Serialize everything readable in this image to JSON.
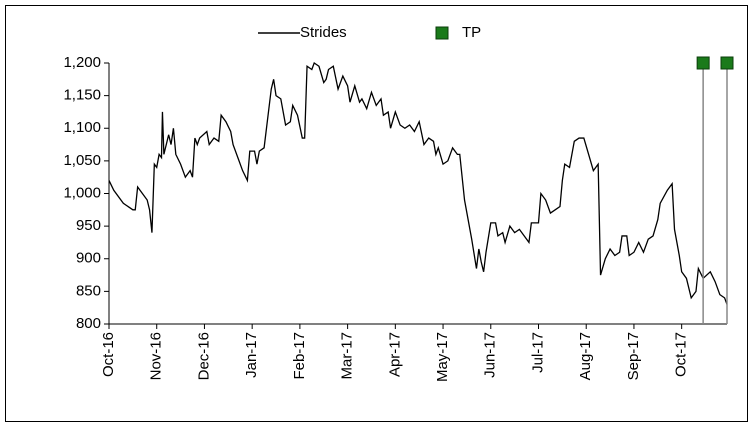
{
  "chart_data": {
    "type": "line",
    "x": [
      0,
      0.1,
      0.3,
      0.5,
      0.55,
      0.6,
      0.7,
      0.8,
      0.85,
      0.9,
      0.95,
      1.0,
      1.05,
      1.1,
      1.12,
      1.15,
      1.25,
      1.3,
      1.35,
      1.4,
      1.5,
      1.6,
      1.7,
      1.75,
      1.8,
      1.85,
      1.9,
      2.05,
      2.1,
      2.2,
      2.3,
      2.35,
      2.45,
      2.55,
      2.6,
      2.7,
      2.8,
      2.9,
      2.95,
      3.05,
      3.1,
      3.15,
      3.25,
      3.3,
      3.4,
      3.45,
      3.5,
      3.6,
      3.7,
      3.8,
      3.85,
      3.95,
      4.05,
      4.1,
      4.15,
      4.25,
      4.3,
      4.4,
      4.5,
      4.55,
      4.6,
      4.7,
      4.8,
      4.9,
      5.0,
      5.05,
      5.15,
      5.25,
      5.3,
      5.4,
      5.5,
      5.6,
      5.7,
      5.75,
      5.85,
      5.9,
      6.0,
      6.1,
      6.2,
      6.3,
      6.4,
      6.5,
      6.6,
      6.7,
      6.8,
      6.85,
      6.9,
      7.0,
      7.1,
      7.2,
      7.3,
      7.35,
      7.45,
      7.6,
      7.7,
      7.75,
      7.8,
      7.85,
      7.9,
      8.0,
      8.1,
      8.15,
      8.25,
      8.3,
      8.4,
      8.5,
      8.6,
      8.7,
      8.8,
      8.85,
      9.0,
      9.05,
      9.15,
      9.25,
      9.35,
      9.45,
      9.5,
      9.55,
      9.65,
      9.75,
      9.85,
      9.95,
      10.05,
      10.15,
      10.25,
      10.3,
      10.4,
      10.5,
      10.6,
      10.7,
      10.75,
      10.85,
      10.9,
      11.0,
      11.1,
      11.2,
      11.3,
      11.4,
      11.5,
      11.55,
      11.7,
      11.8,
      11.85,
      11.95,
      12.0,
      12.1,
      12.2,
      12.3,
      12.35,
      12.45,
      12.6,
      12.7,
      12.8,
      12.9,
      12.95
    ],
    "series": [
      {
        "name": "Strides",
        "color": "#000000",
        "values": [
          1020,
          1005,
          985,
          975,
          975,
          1010,
          1000,
          990,
          975,
          940,
          1045,
          1040,
          1060,
          1055,
          1125,
          1060,
          1090,
          1075,
          1100,
          1060,
          1045,
          1025,
          1035,
          1025,
          1085,
          1075,
          1085,
          1095,
          1075,
          1085,
          1080,
          1120,
          1110,
          1095,
          1075,
          1055,
          1035,
          1020,
          1065,
          1065,
          1045,
          1065,
          1070,
          1100,
          1160,
          1175,
          1150,
          1145,
          1105,
          1110,
          1135,
          1120,
          1085,
          1085,
          1195,
          1190,
          1200,
          1195,
          1170,
          1175,
          1190,
          1195,
          1160,
          1180,
          1165,
          1140,
          1165,
          1140,
          1145,
          1130,
          1155,
          1135,
          1145,
          1120,
          1125,
          1100,
          1125,
          1105,
          1100,
          1105,
          1095,
          1110,
          1075,
          1085,
          1080,
          1060,
          1070,
          1045,
          1050,
          1070,
          1060,
          1060,
          990,
          930,
          885,
          915,
          895,
          880,
          910,
          955,
          955,
          935,
          940,
          925,
          950,
          940,
          945,
          935,
          925,
          955,
          955,
          1000,
          990,
          970,
          975,
          980,
          1020,
          1045,
          1040,
          1080,
          1085,
          1085,
          1060,
          1035,
          1045,
          875,
          900,
          915,
          905,
          910,
          935,
          935,
          905,
          910,
          925,
          910,
          930,
          935,
          960,
          985,
          1005,
          1015,
          945,
          905,
          880,
          870,
          840,
          850,
          885,
          870,
          880,
          865,
          845,
          840,
          830
        ]
      },
      {
        "name": "TP",
        "color": "#1a7a1a",
        "x": [
          12.45,
          12.95
        ],
        "values": [
          1200,
          1200
        ]
      }
    ],
    "xlim": [
      0,
      12.95
    ],
    "xticks": [
      {
        "value": 0,
        "label": "Oct-16"
      },
      {
        "value": 1,
        "label": "Nov-16"
      },
      {
        "value": 2,
        "label": "Dec-16"
      },
      {
        "value": 3,
        "label": "Jan-17"
      },
      {
        "value": 4,
        "label": "Feb-17"
      },
      {
        "value": 5,
        "label": "Mar-17"
      },
      {
        "value": 6,
        "label": "Apr-17"
      },
      {
        "value": 7,
        "label": "May-17"
      },
      {
        "value": 8,
        "label": "Jun-17"
      },
      {
        "value": 9,
        "label": "Jul-17"
      },
      {
        "value": 10,
        "label": "Aug-17"
      },
      {
        "value": 11,
        "label": "Sep-17"
      },
      {
        "value": 12,
        "label": "Oct-17"
      }
    ],
    "ylim": [
      800,
      1200
    ],
    "yticks": [
      800,
      850,
      900,
      950,
      {
        "value": 1000,
        "label": "1,000"
      },
      {
        "value": 1050,
        "label": "1,050"
      },
      {
        "value": 1100,
        "label": "1,100"
      },
      {
        "value": 1150,
        "label": "1,150"
      },
      {
        "value": 1200,
        "label": "1,200"
      }
    ],
    "grid": false
  }
}
